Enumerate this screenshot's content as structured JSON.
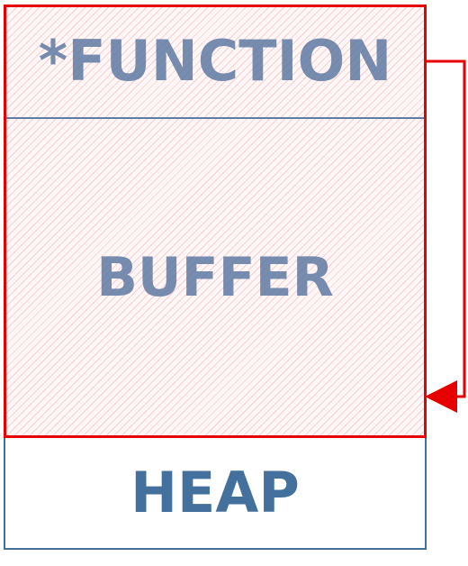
{
  "blocks": {
    "function_pointer": {
      "label": "*FUNCTION"
    },
    "buffer": {
      "label": "BUFFER"
    },
    "heap": {
      "label": "HEAP"
    }
  },
  "colors": {
    "overflow_red": "#e60000",
    "block_text_blue": "#4f6f9c",
    "heap_blue": "#44709d",
    "hatch_pink": "#eb6e6e"
  },
  "relations": {
    "overflow_arrow": {
      "from": "function_pointer",
      "to": "buffer"
    }
  }
}
